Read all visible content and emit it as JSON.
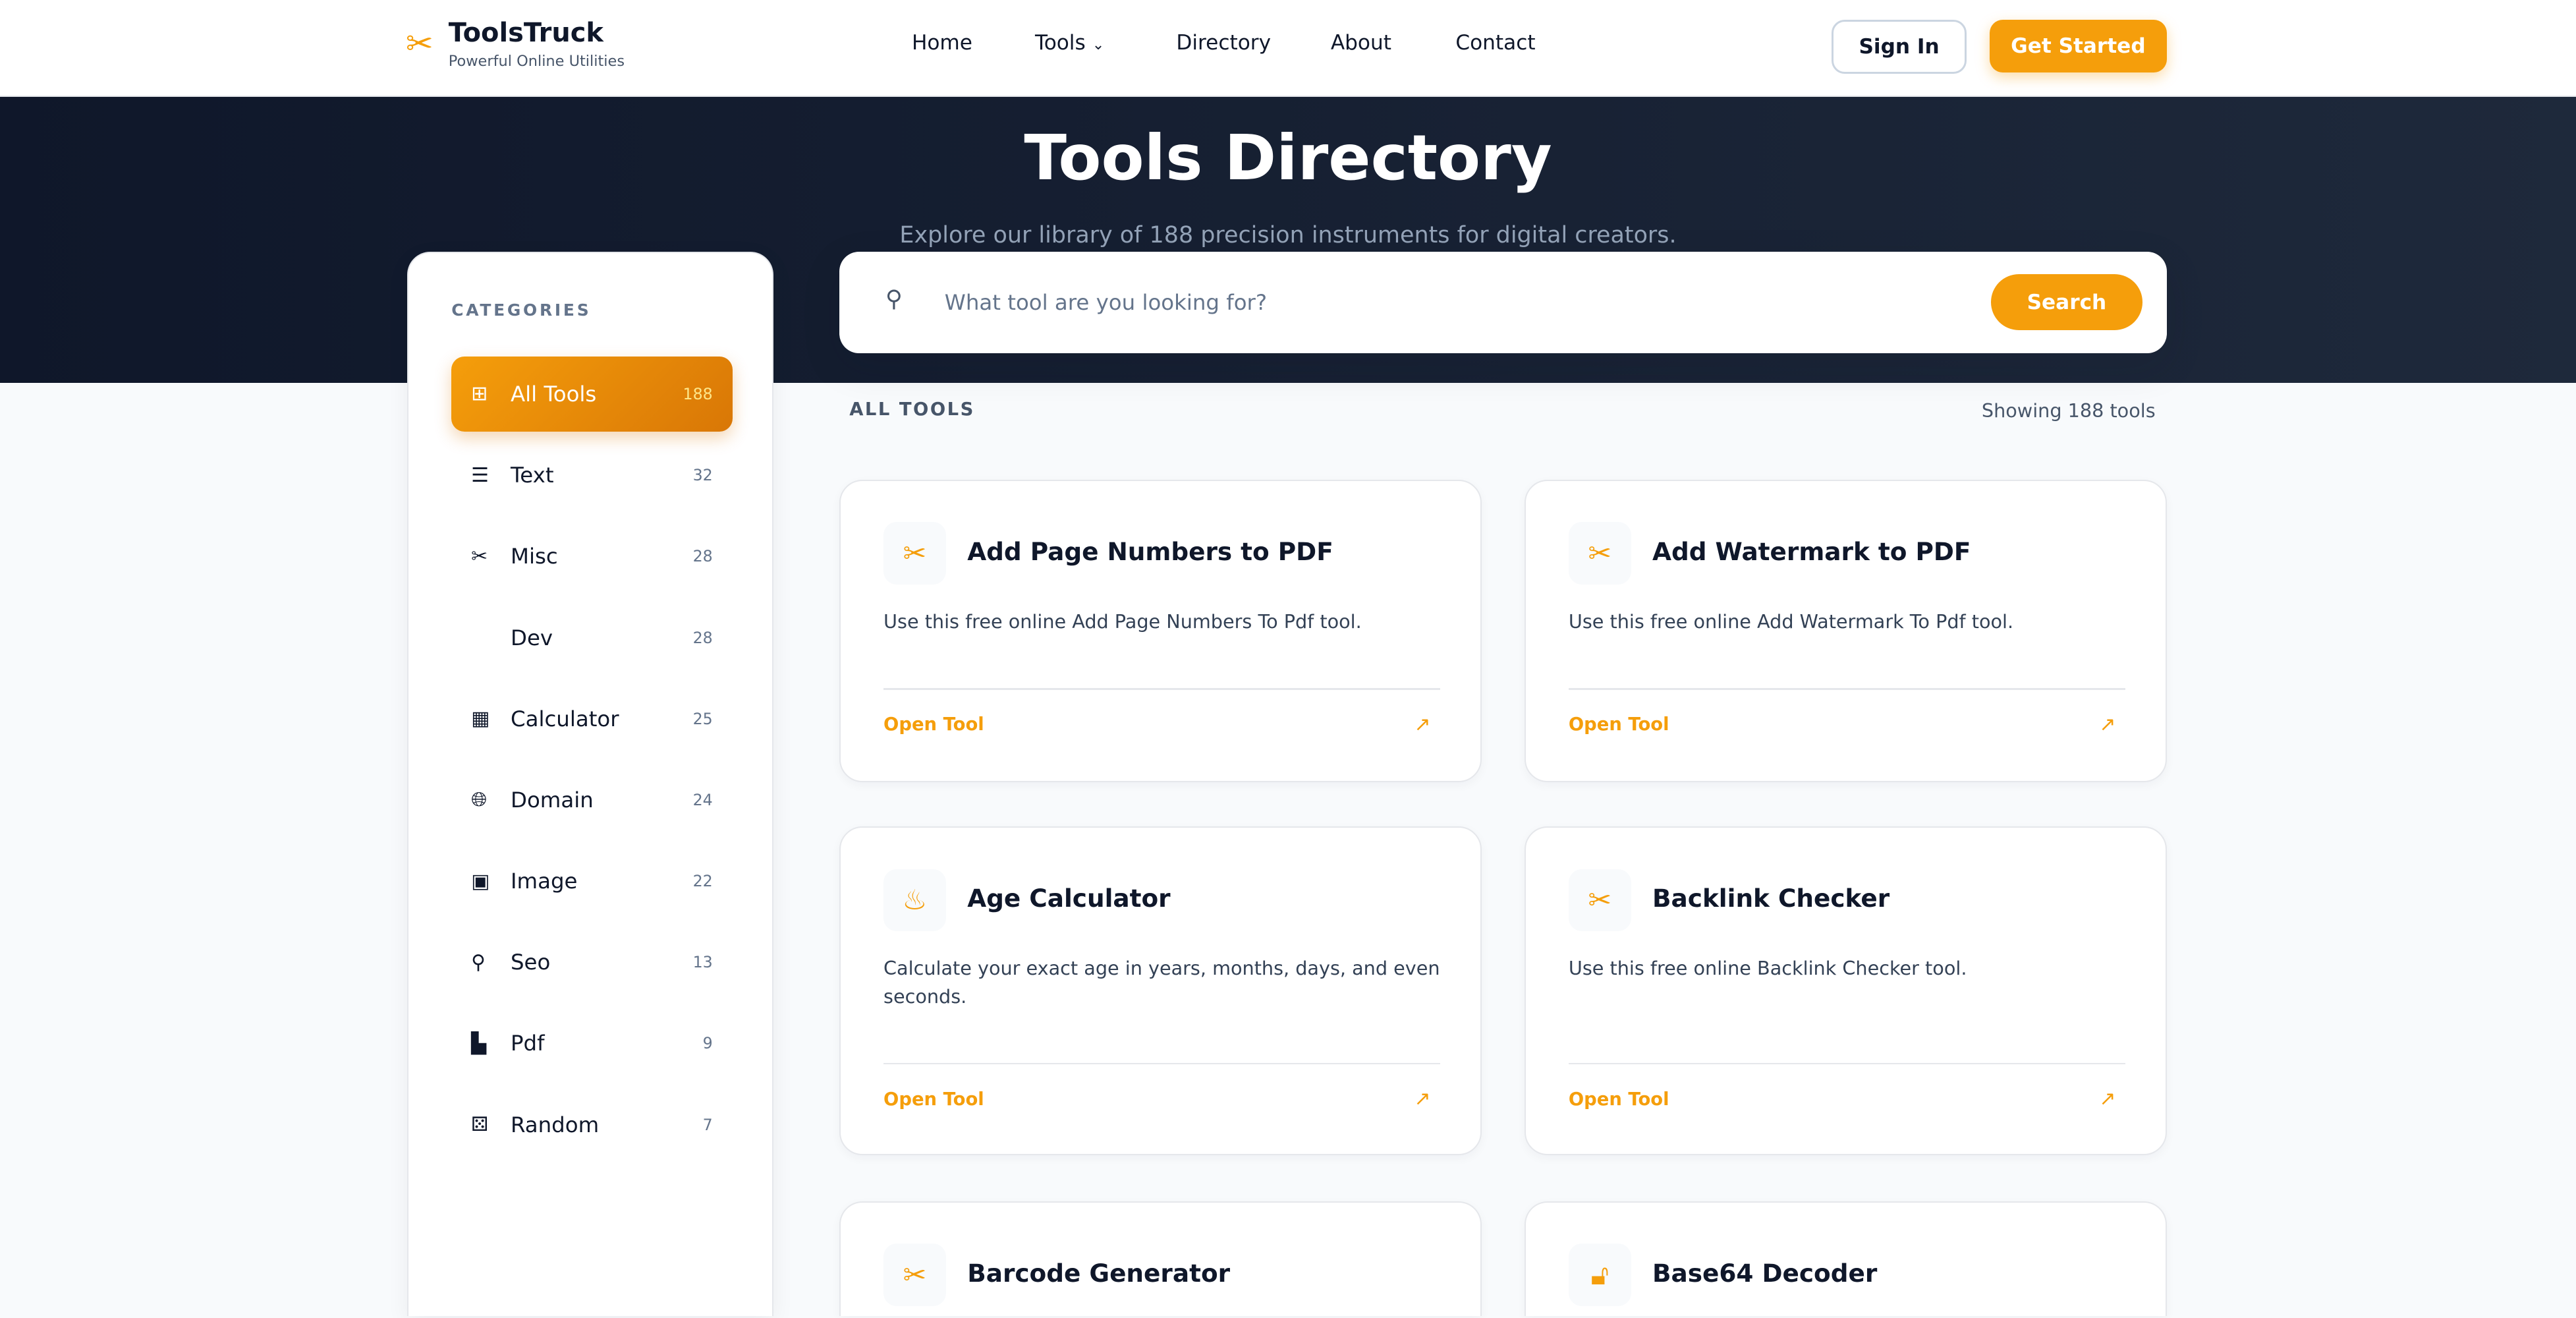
{
  "header": {
    "brand": "ToolsTruck",
    "tagline": "Powerful Online Utilities",
    "nav": [
      "Home",
      "Tools",
      "Directory",
      "About",
      "Contact"
    ],
    "sign_in": "Sign In",
    "get_started": "Get Started"
  },
  "hero": {
    "title": "Tools Directory",
    "subtitle": "Explore our library of 188 precision instruments for digital creators."
  },
  "search": {
    "placeholder": "What tool are you looking for?",
    "value": "",
    "button": "Search"
  },
  "sidebar": {
    "heading": "CATEGORIES",
    "items": [
      {
        "label": "All Tools",
        "count": "188",
        "icon": "grid-icon"
      },
      {
        "label": "Text",
        "count": "32",
        "icon": "align-left-icon"
      },
      {
        "label": "Misc",
        "count": "28",
        "icon": "tools-icon"
      },
      {
        "label": "Dev",
        "count": "28",
        "icon": "code-icon"
      },
      {
        "label": "Calculator",
        "count": "25",
        "icon": "calculator-icon"
      },
      {
        "label": "Domain",
        "count": "24",
        "icon": "globe-icon"
      },
      {
        "label": "Image",
        "count": "22",
        "icon": "image-icon"
      },
      {
        "label": "Seo",
        "count": "13",
        "icon": "search-icon"
      },
      {
        "label": "Pdf",
        "count": "9",
        "icon": "pdf-icon"
      },
      {
        "label": "Random",
        "count": "7",
        "icon": "dice-icon"
      }
    ]
  },
  "main": {
    "heading": "ALL TOOLS",
    "showing": "Showing 188 tools",
    "open_label": "Open Tool",
    "cards": [
      {
        "title": "Add Page Numbers to PDF",
        "desc": "Use this free online Add Page Numbers To Pdf tool.",
        "icon": "tools-icon"
      },
      {
        "title": "Add Watermark to PDF",
        "desc": "Use this free online Add Watermark To Pdf tool.",
        "icon": "tools-icon"
      },
      {
        "title": "Age Calculator",
        "desc": "Calculate your exact age in years, months, days, and even seconds.",
        "icon": "cake-icon"
      },
      {
        "title": "Backlink Checker",
        "desc": "Use this free online Backlink Checker tool.",
        "icon": "tools-icon"
      },
      {
        "title": "Barcode Generator",
        "desc": "",
        "icon": "tools-icon"
      },
      {
        "title": "Base64 Decoder",
        "desc": "",
        "icon": "unlock-icon"
      }
    ]
  },
  "colors": {
    "accent": "#f59e0b",
    "hero": "#0f172a"
  }
}
